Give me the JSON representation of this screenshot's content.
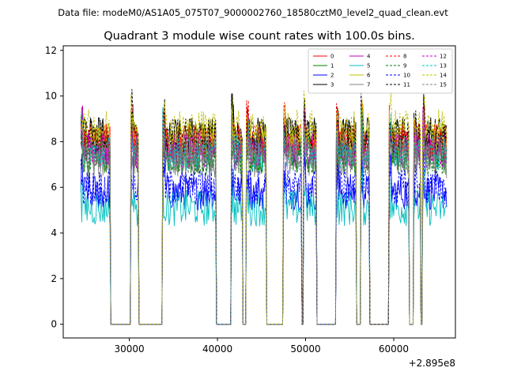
{
  "chart_data": {
    "type": "line",
    "suptitle": "Data file: modeM0/AS1A05_075T07_9000002760_18580cztM0_level2_quad_clean.evt",
    "title": "Quadrant 3 module wise count rates with 100.0s bins.",
    "xlabel": "",
    "ylabel": "",
    "x_offset_label": "+2.895e8",
    "xlim": [
      22500,
      67000
    ],
    "ylim": [
      -0.6,
      12.2
    ],
    "xticks": [
      30000,
      40000,
      50000,
      60000
    ],
    "xtick_labels": [
      "30000",
      "40000",
      "50000",
      "60000"
    ],
    "yticks": [
      0,
      2,
      4,
      6,
      8,
      10,
      12
    ],
    "ytick_labels": [
      "0",
      "2",
      "4",
      "6",
      "8",
      "10",
      "12"
    ],
    "grid": false,
    "legend_position": "top-right",
    "on_intervals": [
      [
        24500,
        27800
      ],
      [
        30200,
        31000
      ],
      [
        33800,
        39800
      ],
      [
        41600,
        42800
      ],
      [
        43300,
        45500
      ],
      [
        47500,
        49500
      ],
      [
        49800,
        51200
      ],
      [
        53500,
        55700
      ],
      [
        56300,
        57200
      ],
      [
        59500,
        61700
      ],
      [
        62300,
        63000
      ],
      [
        63300,
        66000
      ]
    ],
    "bin_seconds": 100,
    "series": [
      {
        "name": "0",
        "color": "#ff0000",
        "dash": "solid",
        "level": 7.9
      },
      {
        "name": "1",
        "color": "#008000",
        "dash": "solid",
        "level": 7.4
      },
      {
        "name": "2",
        "color": "#0000ff",
        "dash": "solid",
        "level": 5.8
      },
      {
        "name": "3",
        "color": "#000000",
        "dash": "solid",
        "level": 8.3
      },
      {
        "name": "4",
        "color": "#bf00bf",
        "dash": "solid",
        "level": 7.7
      },
      {
        "name": "5",
        "color": "#00bfbf",
        "dash": "solid",
        "level": 5.1
      },
      {
        "name": "6",
        "color": "#bfbf00",
        "dash": "solid",
        "level": 8.1
      },
      {
        "name": "7",
        "color": "#808080",
        "dash": "solid",
        "level": 7.2
      },
      {
        "name": "8",
        "color": "#ff0000",
        "dash": "dashed",
        "level": 8.0
      },
      {
        "name": "9",
        "color": "#008000",
        "dash": "dashed",
        "level": 7.3
      },
      {
        "name": "10",
        "color": "#0000ff",
        "dash": "dashed",
        "level": 6.0
      },
      {
        "name": "11",
        "color": "#000000",
        "dash": "dashed",
        "level": 8.2
      },
      {
        "name": "12",
        "color": "#bf00bf",
        "dash": "dashed",
        "level": 7.6
      },
      {
        "name": "13",
        "color": "#00bfbf",
        "dash": "dashed",
        "level": 7.5
      },
      {
        "name": "14",
        "color": "#bfbf00",
        "dash": "dashed",
        "level": 8.6
      },
      {
        "name": "15",
        "color": "#808080",
        "dash": "dashed",
        "level": 7.4
      }
    ]
  }
}
